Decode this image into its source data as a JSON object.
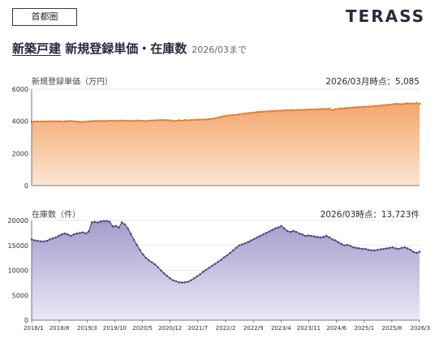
{
  "header": {
    "region": "首都圏",
    "brand": "TERASS",
    "title_em": "新築戸建",
    "title_rest": " 新規登録単価・在庫数",
    "note": "2026/03まで"
  },
  "colors": {
    "price_line": "#e07a2e",
    "price_fill_top": "#f3a66c",
    "price_fill_bottom": "#fde6d2",
    "stock_line": "#54468f",
    "stock_fill_top": "#a69bcc",
    "stock_fill_bottom": "#ece8f6"
  },
  "chart_data": [
    {
      "type": "area",
      "title": "新規登録単価（万円）",
      "annotation": "2026/03月時点：5,085",
      "ylim": [
        0,
        6000
      ],
      "yticks": [
        0,
        2000,
        4000,
        6000
      ],
      "xlim": [
        "2018/1",
        "2026/3"
      ],
      "series": [
        {
          "values": [
            [
              0,
              3960
            ],
            [
              1,
              3990
            ],
            [
              2,
              4000
            ],
            [
              3,
              3980
            ],
            [
              4,
              4000
            ],
            [
              5,
              3990
            ],
            [
              6,
              4010
            ],
            [
              7,
              3995
            ],
            [
              8,
              4000
            ],
            [
              9,
              4005
            ],
            [
              10,
              3990
            ],
            [
              11,
              4000
            ],
            [
              12,
              4010
            ],
            [
              13,
              4020
            ],
            [
              14,
              4000
            ],
            [
              15,
              3980
            ],
            [
              16,
              3960
            ],
            [
              17,
              3950
            ],
            [
              18,
              3980
            ],
            [
              19,
              4000
            ],
            [
              20,
              4010
            ],
            [
              21,
              4020
            ],
            [
              22,
              4030
            ],
            [
              23,
              4020
            ],
            [
              24,
              4010
            ],
            [
              25,
              4030
            ],
            [
              26,
              4040
            ],
            [
              27,
              4040
            ],
            [
              28,
              4030
            ],
            [
              29,
              4030
            ],
            [
              30,
              4050
            ],
            [
              31,
              4040
            ],
            [
              32,
              4030
            ],
            [
              33,
              4020
            ],
            [
              34,
              4040
            ],
            [
              35,
              4050
            ],
            [
              36,
              4040
            ],
            [
              37,
              4030
            ],
            [
              38,
              4020
            ],
            [
              39,
              4040
            ],
            [
              40,
              4050
            ],
            [
              41,
              4060
            ],
            [
              42,
              4070
            ],
            [
              43,
              4080
            ],
            [
              44,
              4080
            ],
            [
              45,
              4070
            ],
            [
              46,
              4060
            ],
            [
              47,
              4020
            ],
            [
              48,
              4040
            ],
            [
              49,
              4070
            ],
            [
              50,
              4040
            ],
            [
              51,
              4080
            ],
            [
              52,
              4060
            ],
            [
              53,
              4080
            ],
            [
              54,
              4090
            ],
            [
              55,
              4100
            ],
            [
              56,
              4100
            ],
            [
              57,
              4110
            ],
            [
              58,
              4120
            ],
            [
              59,
              4140
            ],
            [
              60,
              4160
            ],
            [
              61,
              4190
            ],
            [
              62,
              4230
            ],
            [
              63,
              4280
            ],
            [
              64,
              4320
            ],
            [
              65,
              4350
            ],
            [
              66,
              4380
            ],
            [
              67,
              4390
            ],
            [
              68,
              4400
            ],
            [
              69,
              4430
            ],
            [
              70,
              4460
            ],
            [
              71,
              4490
            ],
            [
              72,
              4510
            ],
            [
              73,
              4530
            ],
            [
              74,
              4550
            ],
            [
              75,
              4570
            ],
            [
              76,
              4590
            ],
            [
              77,
              4600
            ],
            [
              78,
              4620
            ],
            [
              79,
              4630
            ],
            [
              80,
              4640
            ],
            [
              81,
              4650
            ],
            [
              82,
              4660
            ],
            [
              83,
              4670
            ],
            [
              84,
              4680
            ],
            [
              85,
              4690
            ],
            [
              86,
              4690
            ],
            [
              87,
              4700
            ],
            [
              88,
              4700
            ],
            [
              89,
              4710
            ],
            [
              90,
              4710
            ],
            [
              91,
              4720
            ],
            [
              92,
              4730
            ],
            [
              93,
              4740
            ],
            [
              94,
              4740
            ],
            [
              95,
              4750
            ],
            [
              96,
              4760
            ],
            [
              97,
              4770
            ],
            [
              98,
              4770
            ],
            [
              99,
              4780
            ],
            [
              100,
              4700
            ],
            [
              101,
              4750
            ],
            [
              102,
              4790
            ],
            [
              103,
              4800
            ],
            [
              104,
              4810
            ],
            [
              105,
              4830
            ],
            [
              106,
              4840
            ],
            [
              107,
              4860
            ],
            [
              108,
              4870
            ],
            [
              109,
              4890
            ],
            [
              110,
              4900
            ],
            [
              111,
              4910
            ],
            [
              112,
              4920
            ],
            [
              113,
              4930
            ],
            [
              114,
              4950
            ],
            [
              115,
              4960
            ],
            [
              116,
              4980
            ],
            [
              117,
              5000
            ],
            [
              118,
              5020
            ],
            [
              119,
              5040
            ],
            [
              120,
              5060
            ],
            [
              121,
              5090
            ],
            [
              122,
              5080
            ],
            [
              123,
              5070
            ],
            [
              124,
              5090
            ],
            [
              125,
              5120
            ],
            [
              126,
              5110
            ],
            [
              127,
              5100
            ],
            [
              128,
              5140
            ],
            [
              129,
              5085
            ]
          ]
        }
      ]
    },
    {
      "type": "area",
      "title": "在庫数（件）",
      "annotation": "2026/03時点：13,723件",
      "ylim": [
        0,
        20000
      ],
      "yticks": [
        0,
        5000,
        10000,
        15000,
        20000
      ],
      "xlim": [
        "2018/1",
        "2026/3"
      ],
      "xticks": [
        "2018/1",
        "2018/8",
        "2019/3",
        "2019/10",
        "2020/5",
        "2020/12",
        "2021/7",
        "2022/2",
        "2022/9",
        "2023/4",
        "2023/11",
        "2024/6",
        "2025/1",
        "2025/8",
        "2026/3"
      ],
      "series": [
        {
          "values": [
            [
              0,
              16200
            ],
            [
              1,
              16000
            ],
            [
              2,
              15900
            ],
            [
              3,
              15800
            ],
            [
              4,
              15800
            ],
            [
              5,
              15900
            ],
            [
              6,
              16200
            ],
            [
              7,
              16400
            ],
            [
              8,
              16600
            ],
            [
              9,
              16900
            ],
            [
              10,
              17200
            ],
            [
              11,
              17400
            ],
            [
              12,
              17200
            ],
            [
              13,
              16900
            ],
            [
              14,
              17200
            ],
            [
              15,
              17400
            ],
            [
              16,
              17500
            ],
            [
              17,
              17600
            ],
            [
              18,
              17400
            ],
            [
              19,
              17800
            ],
            [
              20,
              19600
            ],
            [
              21,
              19700
            ],
            [
              22,
              19600
            ],
            [
              23,
              19800
            ],
            [
              24,
              19900
            ],
            [
              25,
              19900
            ],
            [
              26,
              19700
            ],
            [
              27,
              18800
            ],
            [
              28,
              18900
            ],
            [
              29,
              18600
            ],
            [
              30,
              19600
            ],
            [
              31,
              19200
            ],
            [
              32,
              18400
            ],
            [
              33,
              17300
            ],
            [
              34,
              16100
            ],
            [
              35,
              15100
            ],
            [
              36,
              14100
            ],
            [
              37,
              13200
            ],
            [
              38,
              12500
            ],
            [
              39,
              12000
            ],
            [
              40,
              11600
            ],
            [
              41,
              11200
            ],
            [
              42,
              10600
            ],
            [
              43,
              10000
            ],
            [
              44,
              9400
            ],
            [
              45,
              8900
            ],
            [
              46,
              8400
            ],
            [
              47,
              8000
            ],
            [
              48,
              7800
            ],
            [
              49,
              7600
            ],
            [
              50,
              7550
            ],
            [
              51,
              7600
            ],
            [
              52,
              7700
            ],
            [
              53,
              8000
            ],
            [
              54,
              8400
            ],
            [
              55,
              8800
            ],
            [
              56,
              9200
            ],
            [
              57,
              9700
            ],
            [
              58,
              10100
            ],
            [
              59,
              10500
            ],
            [
              60,
              10900
            ],
            [
              61,
              11300
            ],
            [
              62,
              11700
            ],
            [
              63,
              12100
            ],
            [
              64,
              12600
            ],
            [
              65,
              13000
            ],
            [
              66,
              13500
            ],
            [
              67,
              14000
            ],
            [
              68,
              14500
            ],
            [
              69,
              15000
            ],
            [
              70,
              15200
            ],
            [
              71,
              15400
            ],
            [
              72,
              15700
            ],
            [
              73,
              16000
            ],
            [
              74,
              16300
            ],
            [
              75,
              16600
            ],
            [
              76,
              16900
            ],
            [
              77,
              17200
            ],
            [
              78,
              17500
            ],
            [
              79,
              17800
            ],
            [
              80,
              18100
            ],
            [
              81,
              18400
            ],
            [
              82,
              18600
            ],
            [
              83,
              18900
            ],
            [
              84,
              18400
            ],
            [
              85,
              17900
            ],
            [
              86,
              17700
            ],
            [
              87,
              17900
            ],
            [
              88,
              17700
            ],
            [
              89,
              17400
            ],
            [
              90,
              17200
            ],
            [
              91,
              16900
            ],
            [
              92,
              17000
            ],
            [
              93,
              16900
            ],
            [
              94,
              16800
            ],
            [
              95,
              16700
            ],
            [
              96,
              16600
            ],
            [
              97,
              16700
            ],
            [
              98,
              16900
            ],
            [
              99,
              16600
            ],
            [
              100,
              16200
            ],
            [
              101,
              16000
            ],
            [
              102,
              15600
            ],
            [
              103,
              15300
            ],
            [
              104,
              15000
            ],
            [
              105,
              15100
            ],
            [
              106,
              14900
            ],
            [
              107,
              14600
            ],
            [
              108,
              14500
            ],
            [
              109,
              14400
            ],
            [
              110,
              14300
            ],
            [
              111,
              14300
            ],
            [
              112,
              14100
            ],
            [
              113,
              14000
            ],
            [
              114,
              14000
            ],
            [
              115,
              14100
            ],
            [
              116,
              14200
            ],
            [
              117,
              14300
            ],
            [
              118,
              14400
            ],
            [
              119,
              14500
            ],
            [
              120,
              14600
            ],
            [
              121,
              14400
            ],
            [
              122,
              14300
            ],
            [
              123,
              14500
            ],
            [
              124,
              14600
            ],
            [
              125,
              14400
            ],
            [
              126,
              14100
            ],
            [
              127,
              13700
            ],
            [
              128,
              13500
            ],
            [
              129,
              13723
            ]
          ]
        }
      ]
    }
  ]
}
